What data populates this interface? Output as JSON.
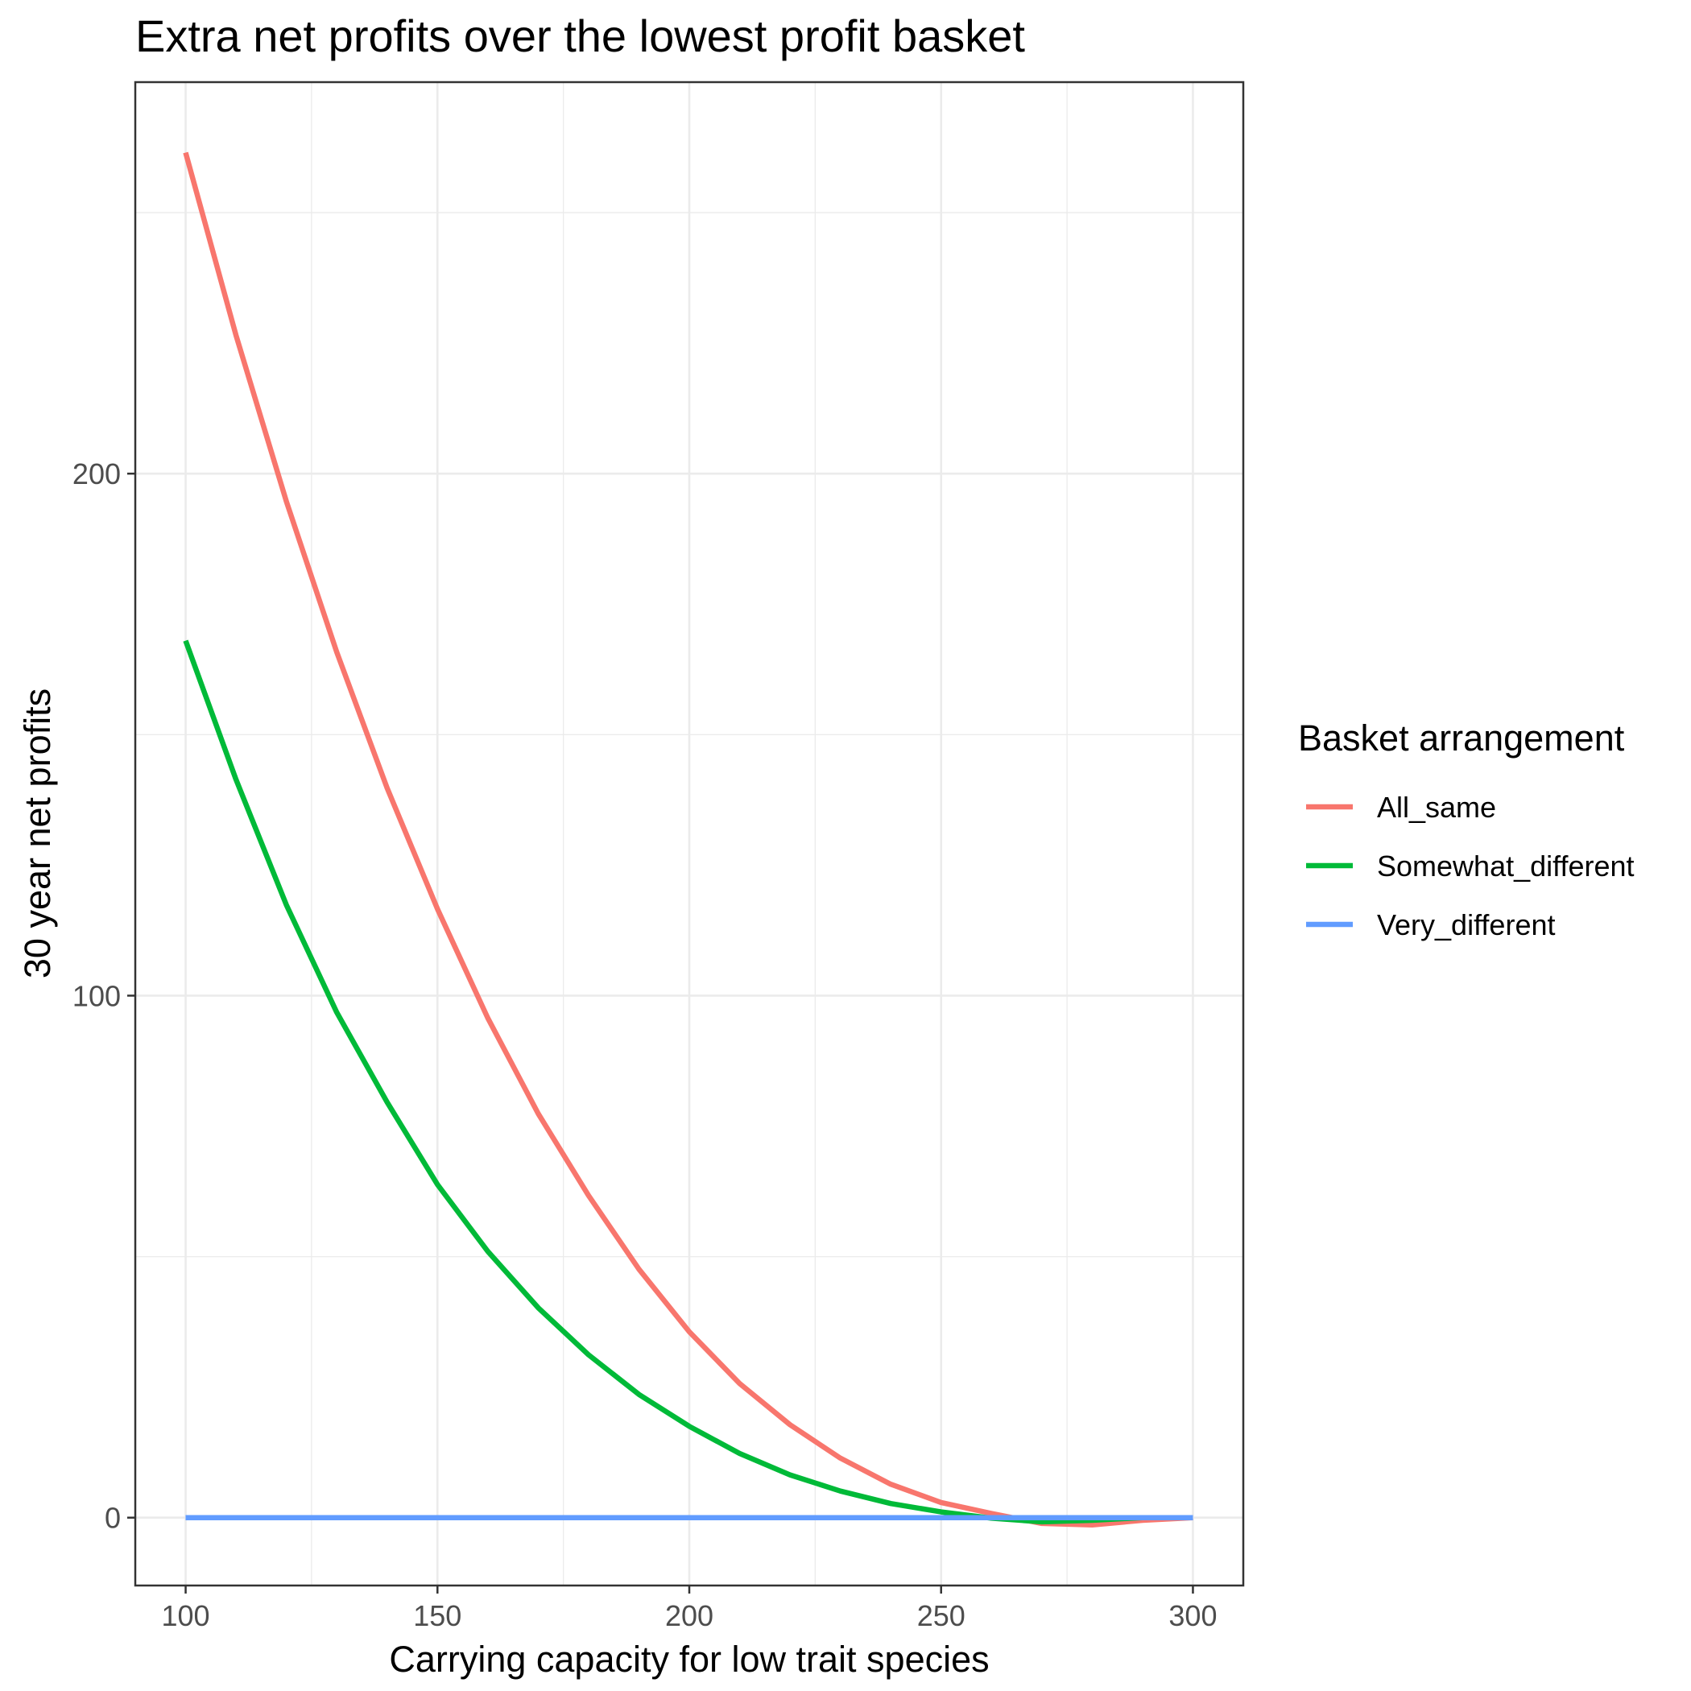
{
  "chart_data": {
    "type": "line",
    "title": "Extra net profits over the lowest profit basket",
    "xlabel": "Carrying capacity for low trait species",
    "ylabel": "30 year net profits",
    "xlim": [
      90,
      310
    ],
    "ylim": [
      -13,
      275
    ],
    "x_ticks": [
      100,
      150,
      200,
      250,
      300
    ],
    "y_ticks": [
      0,
      100,
      200
    ],
    "grid": true,
    "legend_title": "Basket arrangement",
    "legend_position": "right",
    "x": [
      100,
      110,
      120,
      130,
      140,
      150,
      160,
      170,
      180,
      190,
      200,
      210,
      220,
      230,
      240,
      250,
      260,
      270,
      280,
      290,
      300
    ],
    "series": [
      {
        "name": "All_same",
        "color": "#F8766D",
        "values": [
          261.5,
          226.5,
          194.7,
          165.8,
          139.8,
          116.6,
          95.7,
          77.4,
          61.7,
          47.6,
          35.6,
          25.7,
          17.8,
          11.4,
          6.4,
          2.9,
          0.8,
          -1.1,
          -1.4,
          -0.5,
          0
        ]
      },
      {
        "name": "Somewhat_different",
        "color": "#00BA38",
        "values": [
          168.0,
          141.4,
          117.4,
          96.8,
          79.6,
          63.8,
          51.0,
          40.2,
          31.2,
          23.6,
          17.5,
          12.3,
          8.2,
          5.1,
          2.7,
          1.1,
          -0.1,
          -0.8,
          -0.5,
          0,
          0
        ]
      },
      {
        "name": "Very_different",
        "color": "#619CFF",
        "values": [
          0,
          0,
          0,
          0,
          0,
          0,
          0,
          0,
          0,
          0,
          0,
          0,
          0,
          0,
          0,
          0,
          0,
          0,
          0,
          0,
          0
        ]
      }
    ]
  }
}
